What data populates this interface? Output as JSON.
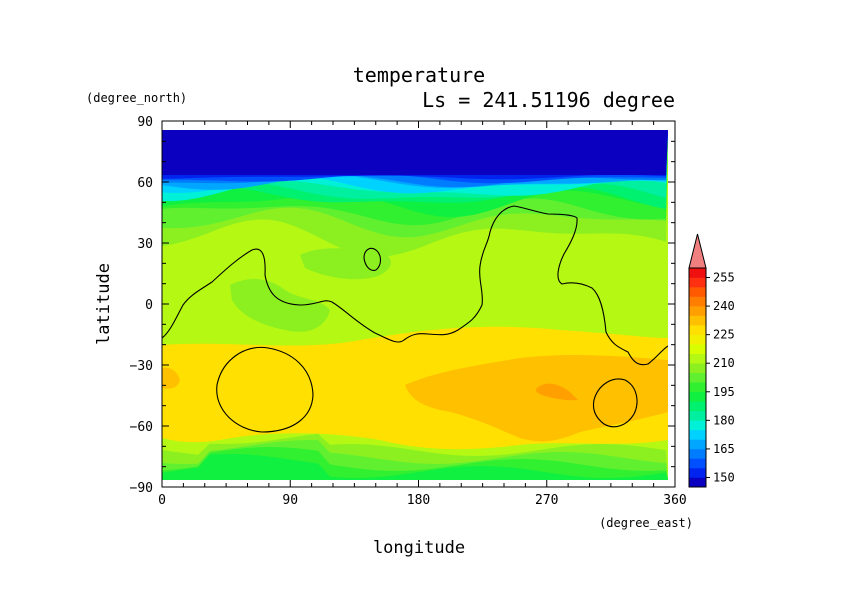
{
  "chart_data": {
    "type": "heatmap",
    "title": "temperature",
    "subtitle": "Ls = 241.51196 degree",
    "xlabel": "longitude",
    "ylabel": "latitude",
    "xunits": "(degree_east)",
    "yunits": "(degree_north)",
    "xlim": [
      0,
      360
    ],
    "ylim": [
      -90,
      90
    ],
    "x_ticks": [
      0,
      90,
      180,
      270,
      360
    ],
    "y_ticks": [
      90,
      60,
      30,
      0,
      -30,
      -60,
      -90
    ],
    "x_tick_labels": [
      "0",
      "90",
      "180",
      "270",
      "360"
    ],
    "y_tick_labels": [
      "90",
      "60",
      "30",
      "0",
      "−30",
      "−60",
      "−90"
    ],
    "colorbar": {
      "levels": [
        145,
        150,
        155,
        160,
        165,
        170,
        175,
        180,
        185,
        190,
        195,
        200,
        205,
        210,
        215,
        220,
        225,
        230,
        235,
        240,
        245,
        250,
        255,
        260
      ],
      "tick_labels": [
        "150",
        "165",
        "180",
        "195",
        "210",
        "225",
        "240",
        "255"
      ],
      "colors": [
        "#0c00c0",
        "#0024f0",
        "#0050ff",
        "#007cff",
        "#00a6ff",
        "#00d2ff",
        "#00f0d8",
        "#00f0a0",
        "#00f070",
        "#10f040",
        "#30f030",
        "#60f030",
        "#8cf020",
        "#b4f814",
        "#d8ff00",
        "#f0f000",
        "#ffe000",
        "#ffc000",
        "#ffa000",
        "#ff7e00",
        "#ff5a00",
        "#ff3010",
        "#f01010",
        "#f08080"
      ],
      "extend": "max"
    },
    "contours": [
      "coastline-north",
      "crater-east",
      "crater-west",
      "crater-south-east"
    ],
    "colors": {
      "background": "#ffffff",
      "frame": "#000000"
    }
  }
}
